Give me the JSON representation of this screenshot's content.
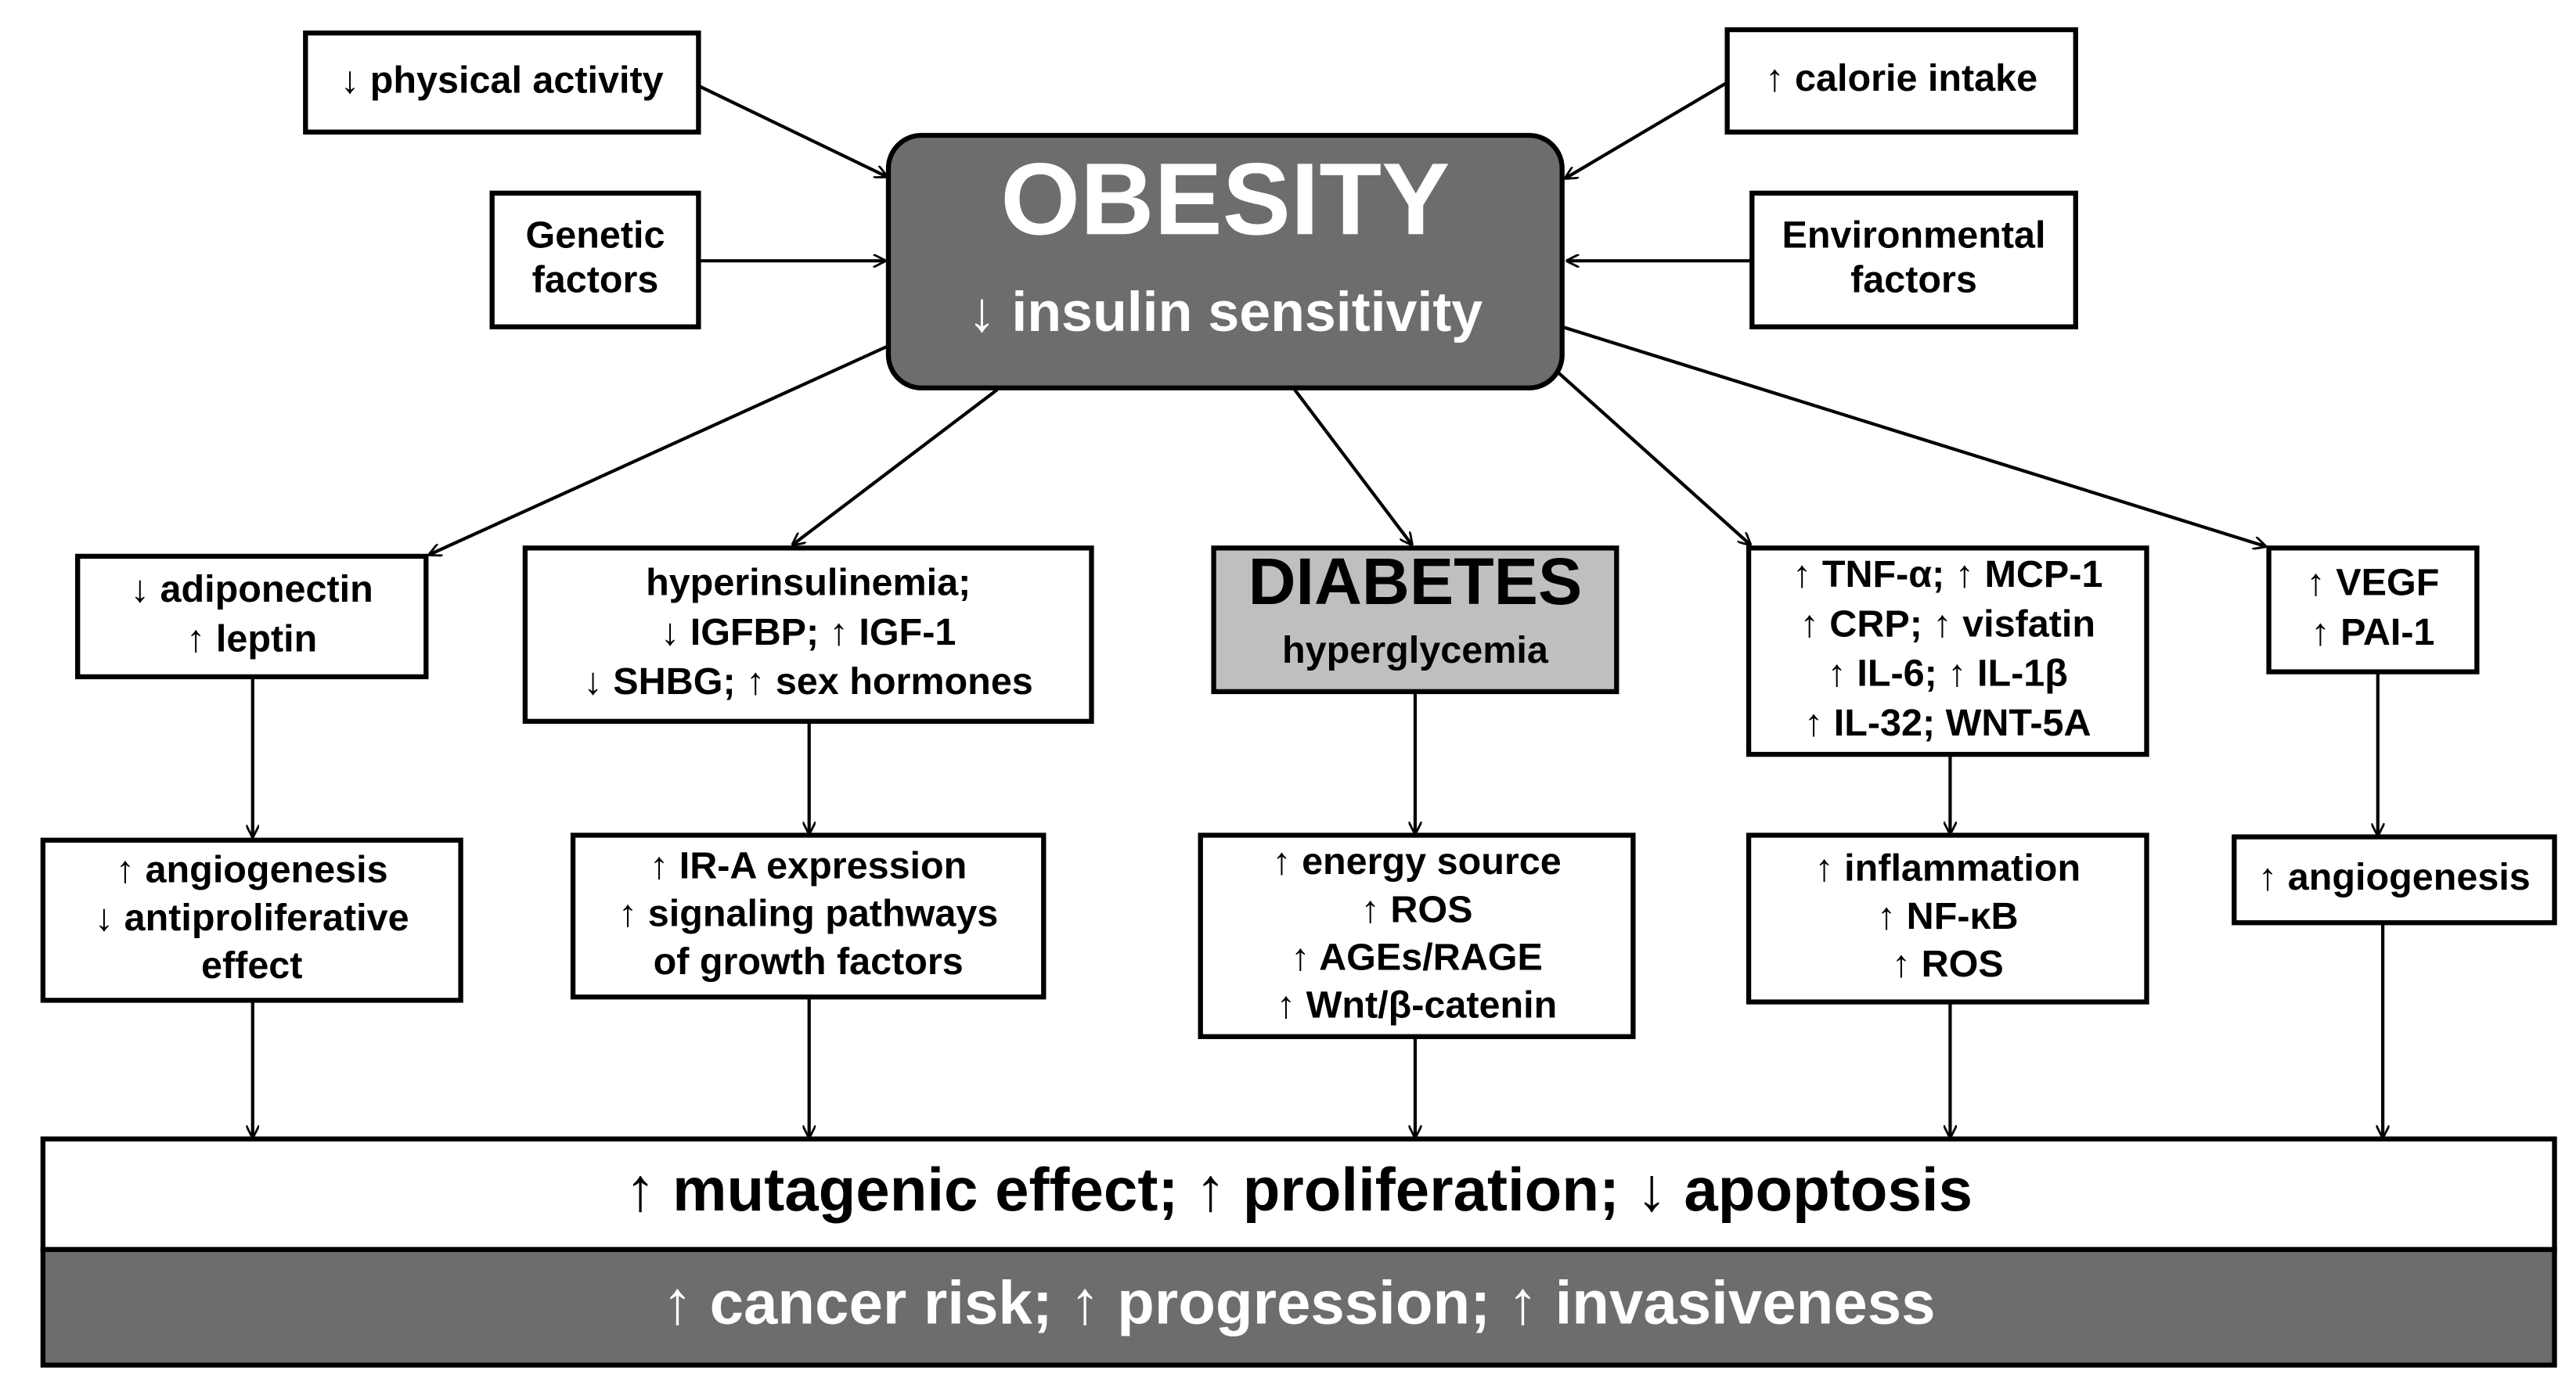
{
  "nodes": [
    {
      "lines": [
        "↓ physical activity"
      ]
    },
    {
      "lines": [
        "↑ calorie intake"
      ]
    },
    {
      "lines": [
        "Genetic",
        "factors"
      ]
    },
    {
      "lines": [
        "Environmental",
        "factors"
      ]
    },
    {
      "lines": [
        "OBESITY",
        "↓ insulin sensitivity"
      ]
    },
    {
      "lines": [
        "↓ adiponectin",
        "↑ leptin"
      ]
    },
    {
      "lines": [
        "hyperinsulinemia;",
        "↓ IGFBP; ↑ IGF-1",
        "↓ SHBG; ↑ sex hormones"
      ]
    },
    {
      "lines": [
        "DIABETES",
        "hyperglycemia"
      ]
    },
    {
      "lines": [
        "↑ TNF-α; ↑ MCP-1",
        "↑ CRP; ↑ visfatin",
        "↑ IL-6; ↑ IL-1β",
        "↑ IL-32; WNT-5A"
      ]
    },
    {
      "lines": [
        "↑ VEGF",
        "↑ PAI-1"
      ]
    },
    {
      "lines": [
        "↑ angiogenesis",
        "↓ antiproliferative",
        "effect"
      ]
    },
    {
      "lines": [
        "↑ IR-A expression",
        "↑ signaling pathways",
        "of growth factors"
      ]
    },
    {
      "lines": [
        "↑ energy source",
        "↑ ROS",
        "↑ AGEs/RAGE",
        "↑ Wnt/β-catenin"
      ]
    },
    {
      "lines": [
        "↑ inflammation",
        "↑ NF-κB",
        "↑ ROS"
      ]
    },
    {
      "lines": [
        "↑ angiogenesis"
      ]
    },
    {
      "lines": [
        "↑ mutagenic effect; ↑ proliferation; ↓ apoptosis"
      ]
    },
    {
      "lines": [
        "↑ cancer risk; ↑ progression; ↑ invasiveness"
      ]
    }
  ]
}
